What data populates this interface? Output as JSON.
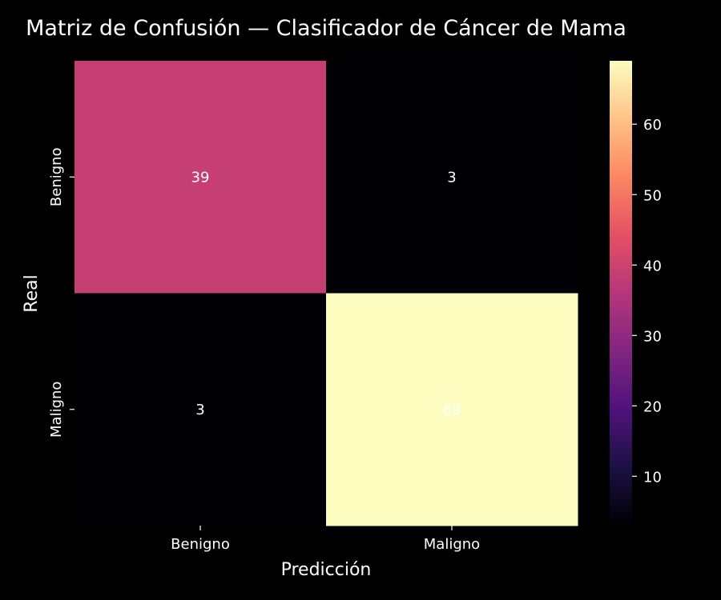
{
  "chart_data": {
    "type": "heatmap",
    "title": "Matriz de Confusión — Clasificador de Cáncer de Mama",
    "xlabel": "Predicción",
    "ylabel": "Real",
    "x_categories": [
      "Benigno",
      "Maligno"
    ],
    "y_categories": [
      "Benigno",
      "Maligno"
    ],
    "values": [
      [
        39,
        3
      ],
      [
        3,
        69
      ]
    ],
    "colormap": "magma",
    "color_range": [
      3,
      69
    ],
    "colorbar_ticks": [
      "10",
      "20",
      "30",
      "40",
      "50",
      "60"
    ],
    "colorbar_tick_values": [
      10,
      20,
      30,
      40,
      50,
      60
    ],
    "background_color": "#000000",
    "text_color": "#ffffff",
    "grid": false
  }
}
